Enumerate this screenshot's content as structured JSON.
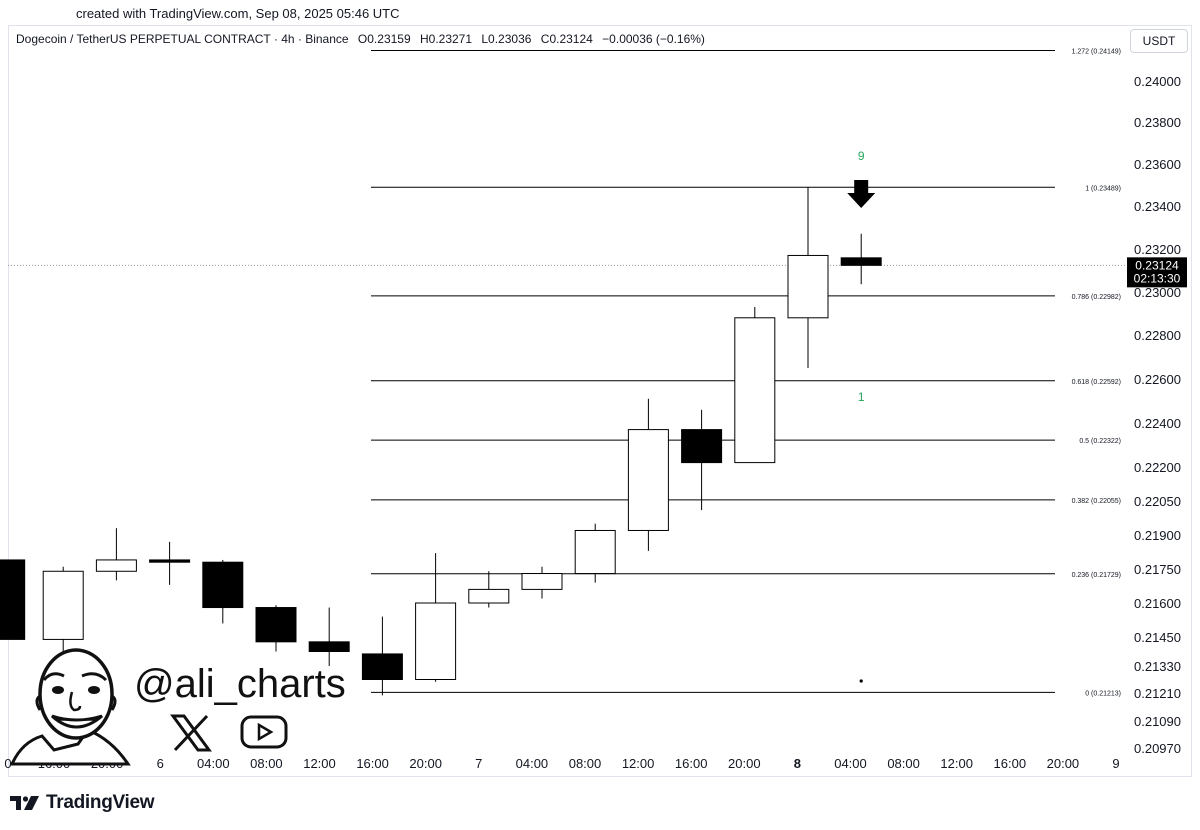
{
  "created_text": "created with TradingView.com, Sep 08, 2025 05:46 UTC",
  "header": {
    "symbol": "Dogecoin / TetherUS PERPETUAL CONTRACT · 4h · Binance",
    "open": "O0.23159",
    "high": "H0.23271",
    "low": "L0.23036",
    "close": "C0.23124",
    "change": "−0.00036 (−0.16%)"
  },
  "currency": "USDT",
  "watermark": {
    "handle": "@ali_charts"
  },
  "brand": "TradingView",
  "colors": {
    "up_body": "#ffffff",
    "down_body": "#000000",
    "wick": "#000000",
    "fib_line": "#000000",
    "td_count": "#26a65b"
  },
  "chart_data": {
    "type": "candlestick",
    "timeframe": "4h",
    "price_axis": [
      "0.24000",
      "0.23800",
      "0.23600",
      "0.23400",
      "0.23200",
      "0.23000",
      "0.22800",
      "0.22600",
      "0.22400",
      "0.22200",
      "0.22050",
      "0.21900",
      "0.21750",
      "0.21600",
      "0.21450",
      "0.21330",
      "0.21210",
      "0.21090",
      "0.20970"
    ],
    "time_axis": [
      {
        "label": "0",
        "bold": false
      },
      {
        "label": "16:00",
        "bold": false
      },
      {
        "label": "20:00",
        "bold": false
      },
      {
        "label": "6",
        "bold": false
      },
      {
        "label": "04:00",
        "bold": false
      },
      {
        "label": "08:00",
        "bold": false
      },
      {
        "label": "12:00",
        "bold": false
      },
      {
        "label": "16:00",
        "bold": false
      },
      {
        "label": "20:00",
        "bold": false
      },
      {
        "label": "7",
        "bold": false
      },
      {
        "label": "04:00",
        "bold": false
      },
      {
        "label": "08:00",
        "bold": false
      },
      {
        "label": "12:00",
        "bold": false
      },
      {
        "label": "16:00",
        "bold": false
      },
      {
        "label": "20:00",
        "bold": false
      },
      {
        "label": "8",
        "bold": true
      },
      {
        "label": "04:00",
        "bold": false
      },
      {
        "label": "08:00",
        "bold": false
      },
      {
        "label": "12:00",
        "bold": false
      },
      {
        "label": "16:00",
        "bold": false
      },
      {
        "label": "20:00",
        "bold": false
      },
      {
        "label": "9",
        "bold": false
      }
    ],
    "candles": [
      {
        "i": -0.1,
        "open": 0.2179,
        "high": 0.2179,
        "low": 0.2144,
        "close": 0.2144
      },
      {
        "i": 1,
        "open": 0.2144,
        "high": 0.2176,
        "low": 0.2139,
        "close": 0.2174
      },
      {
        "i": 2,
        "open": 0.2174,
        "high": 0.2193,
        "low": 0.217,
        "close": 0.2179
      },
      {
        "i": 3,
        "open": 0.2179,
        "high": 0.2187,
        "low": 0.2168,
        "close": 0.2178
      },
      {
        "i": 4,
        "open": 0.2178,
        "high": 0.2179,
        "low": 0.2151,
        "close": 0.2158
      },
      {
        "i": 5,
        "open": 0.2158,
        "high": 0.2159,
        "low": 0.2139,
        "close": 0.2143
      },
      {
        "i": 6,
        "open": 0.2143,
        "high": 0.2158,
        "low": 0.2133,
        "close": 0.2139
      },
      {
        "i": 7,
        "open": 0.2138,
        "high": 0.2154,
        "low": 0.212,
        "close": 0.2127
      },
      {
        "i": 8,
        "open": 0.2127,
        "high": 0.2182,
        "low": 0.2126,
        "close": 0.216
      },
      {
        "i": 9,
        "open": 0.216,
        "high": 0.2174,
        "low": 0.2158,
        "close": 0.2166
      },
      {
        "i": 10,
        "open": 0.2166,
        "high": 0.2176,
        "low": 0.2162,
        "close": 0.2173
      },
      {
        "i": 11,
        "open": 0.2173,
        "high": 0.2195,
        "low": 0.2169,
        "close": 0.2192
      },
      {
        "i": 12,
        "open": 0.2192,
        "high": 0.2251,
        "low": 0.2183,
        "close": 0.2237
      },
      {
        "i": 13,
        "open": 0.2237,
        "high": 0.2246,
        "low": 0.2201,
        "close": 0.2222
      },
      {
        "i": 14,
        "open": 0.2222,
        "high": 0.2293,
        "low": 0.2222,
        "close": 0.2288
      },
      {
        "i": 15,
        "open": 0.2288,
        "high": 0.23489,
        "low": 0.2265,
        "close": 0.2317
      },
      {
        "i": 16,
        "open": 0.23159,
        "high": 0.23271,
        "low": 0.23036,
        "close": 0.23124
      }
    ],
    "fib_levels": [
      {
        "label": "1.272 (0.24149)",
        "price": 0.24149
      },
      {
        "label": "1 (0.23489)",
        "price": 0.23489
      },
      {
        "label": "0.786 (0.22982)",
        "price": 0.22982
      },
      {
        "label": "0.618 (0.22592)",
        "price": 0.22592
      },
      {
        "label": "0.5 (0.22322)",
        "price": 0.22322
      },
      {
        "label": "0.382 (0.22055)",
        "price": 0.22055
      },
      {
        "label": "0.236 (0.21729)",
        "price": 0.21729
      },
      {
        "label": "0 (0.21213)",
        "price": 0.21213
      }
    ],
    "td_counts": [
      {
        "label": "9",
        "candle": 16,
        "price": 0.2362
      },
      {
        "label": "1",
        "candle": 16,
        "price": 0.225
      }
    ],
    "sell_signal_candle": 16,
    "last_price": {
      "value": "0.23124",
      "countdown": "02:13:30",
      "price": 0.23124
    }
  }
}
